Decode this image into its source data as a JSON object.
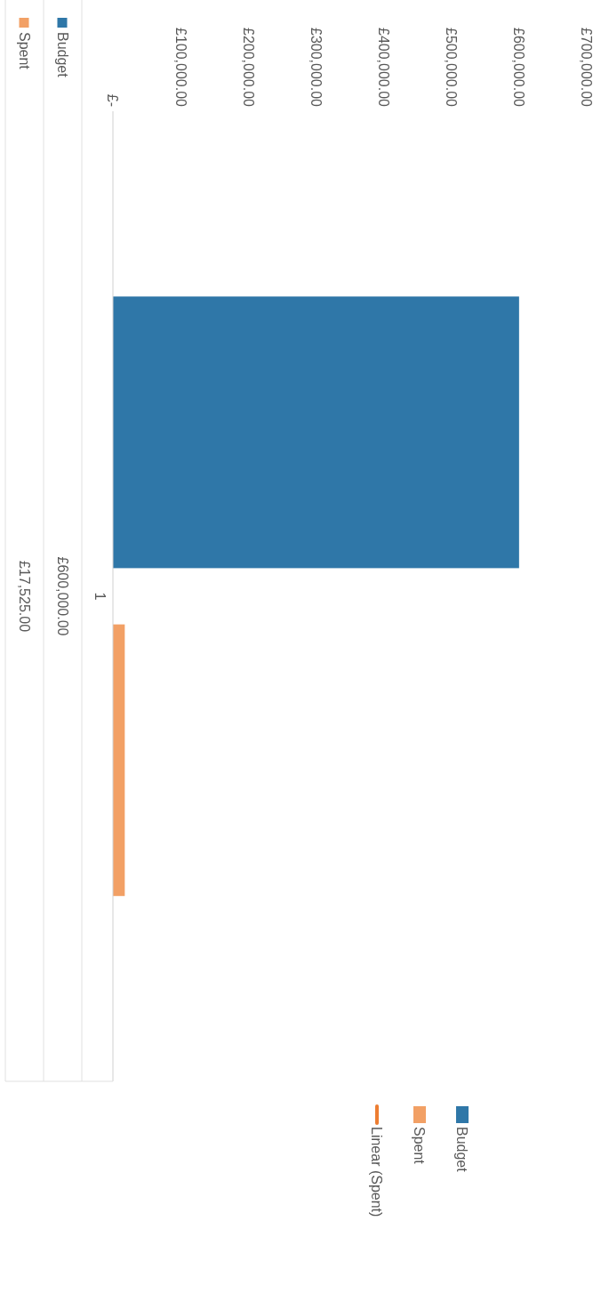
{
  "chart_data": {
    "type": "bar",
    "orientation": "horizontal",
    "categories": [
      "1"
    ],
    "series": [
      {
        "name": "Budget",
        "color": "#2f77a8",
        "values": [
          600000
        ]
      },
      {
        "name": "Spent",
        "color": "#f2a065",
        "values": [
          17525
        ]
      },
      {
        "name": "Linear (Spent)",
        "color": "#ed7d31",
        "type": "line",
        "values": [
          null
        ]
      }
    ],
    "xlim": [
      0,
      700000
    ],
    "xticks": [
      {
        "value": 0,
        "label": "£-"
      },
      {
        "value": 100000,
        "label": "£100,000.00"
      },
      {
        "value": 200000,
        "label": "£200,000.00"
      },
      {
        "value": 300000,
        "label": "£300,000.00"
      },
      {
        "value": 400000,
        "label": "£400,000.00"
      },
      {
        "value": 500000,
        "label": "£500,000.00"
      },
      {
        "value": 600000,
        "label": "£600,000.00"
      },
      {
        "value": 700000,
        "label": "£700,000.00"
      }
    ],
    "value_labels": [
      [
        "£600,000.00"
      ],
      [
        "£17,525.00"
      ],
      [
        null
      ]
    ],
    "legend": "bottom",
    "grid": false
  }
}
